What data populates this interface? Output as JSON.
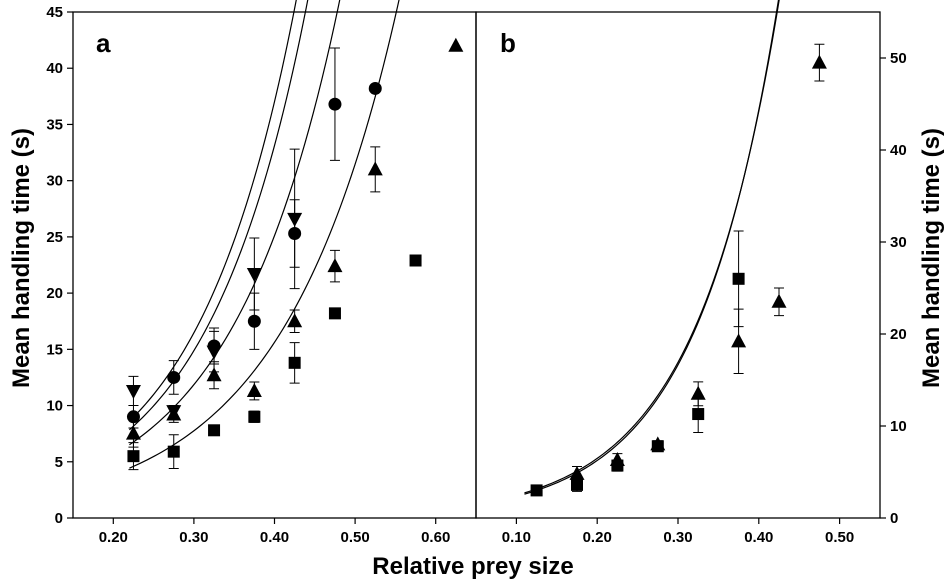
{
  "chart_data": {
    "type": "scatter",
    "xlabel": "Relative prey size",
    "panels": [
      {
        "label": "a",
        "ylabel": "Mean handling time (s)",
        "y_axis_side": "left",
        "xlim": [
          0.15,
          0.65
        ],
        "ylim": [
          0,
          45
        ],
        "x_ticks": [
          "0.20",
          "0.30",
          "0.40",
          "0.50",
          "0.60"
        ],
        "x_tick_values": [
          0.2,
          0.3,
          0.4,
          0.5,
          0.6
        ],
        "y_ticks": [
          "0",
          "5",
          "10",
          "15",
          "20",
          "25",
          "30",
          "35",
          "40",
          "45"
        ],
        "y_tick_values": [
          0,
          5,
          10,
          15,
          20,
          25,
          30,
          35,
          40,
          45
        ],
        "series": [
          {
            "marker": "triangle-down",
            "points": [
              {
                "x": 0.225,
                "y": 11.3,
                "err": 1.3
              },
              {
                "x": 0.275,
                "y": 9.5,
                "err": 0.5
              },
              {
                "x": 0.325,
                "y": 14.8,
                "err": 1.8
              },
              {
                "x": 0.375,
                "y": 21.7,
                "err": 3.2
              },
              {
                "x": 0.425,
                "y": 26.6,
                "err": 6.2
              }
            ],
            "fit": {
              "a": 1.45,
              "b": 8.1,
              "x_range": [
                0.22,
                0.49
              ]
            }
          },
          {
            "marker": "circle",
            "points": [
              {
                "x": 0.225,
                "y": 9.0,
                "err": 1.0
              },
              {
                "x": 0.275,
                "y": 12.5,
                "err": 1.5
              },
              {
                "x": 0.325,
                "y": 15.3,
                "err": 1.6
              },
              {
                "x": 0.375,
                "y": 17.5,
                "err": 2.5
              },
              {
                "x": 0.425,
                "y": 25.3,
                "err": 3.0
              },
              {
                "x": 0.475,
                "y": 36.8,
                "err": 5.0
              },
              {
                "x": 0.525,
                "y": 38.2,
                "err": 0
              }
            ],
            "fit": {
              "a": 1.35,
              "b": 8.0,
              "x_range": [
                0.22,
                0.545
              ]
            }
          },
          {
            "marker": "triangle-up",
            "points": [
              {
                "x": 0.225,
                "y": 7.5,
                "err": 1.2
              },
              {
                "x": 0.275,
                "y": 9.2,
                "err": 0.7
              },
              {
                "x": 0.325,
                "y": 12.7,
                "err": 1.2
              },
              {
                "x": 0.375,
                "y": 11.3,
                "err": 0.8
              },
              {
                "x": 0.425,
                "y": 17.5,
                "err": 1.0
              },
              {
                "x": 0.475,
                "y": 22.4,
                "err": 1.4
              },
              {
                "x": 0.525,
                "y": 31.0,
                "err": 2.0
              },
              {
                "x": 0.625,
                "y": 42.0,
                "err": 0
              }
            ],
            "fit": {
              "a": 1.25,
              "b": 7.5,
              "x_range": [
                0.22,
                0.635
              ]
            }
          },
          {
            "marker": "square",
            "points": [
              {
                "x": 0.225,
                "y": 5.5,
                "err": 1.2
              },
              {
                "x": 0.275,
                "y": 5.9,
                "err": 1.5
              },
              {
                "x": 0.325,
                "y": 7.8,
                "err": 0
              },
              {
                "x": 0.375,
                "y": 9.0,
                "err": 0.5
              },
              {
                "x": 0.425,
                "y": 13.8,
                "err": 1.8
              },
              {
                "x": 0.475,
                "y": 18.2,
                "err": 0
              },
              {
                "x": 0.575,
                "y": 22.9,
                "err": 0
              }
            ],
            "fit": {
              "a": 0.95,
              "b": 7.0,
              "x_range": [
                0.22,
                0.575
              ]
            }
          }
        ]
      },
      {
        "label": "b",
        "ylabel": "Mean handling time (s)",
        "y_axis_side": "right",
        "xlim": [
          0.05,
          0.55
        ],
        "ylim": [
          0,
          55
        ],
        "x_ticks": [
          "0.10",
          "0.20",
          "0.30",
          "0.40",
          "0.50"
        ],
        "x_tick_values": [
          0.1,
          0.2,
          0.3,
          0.4,
          0.5
        ],
        "y_ticks": [
          "0",
          "10",
          "20",
          "30",
          "40",
          "50"
        ],
        "y_tick_values": [
          0,
          10,
          20,
          30,
          40,
          50
        ],
        "series": [
          {
            "marker": "square",
            "points": [
              {
                "x": 0.125,
                "y": 3.0,
                "err": 0
              },
              {
                "x": 0.175,
                "y": 3.6,
                "err": 0.7
              },
              {
                "x": 0.225,
                "y": 5.7,
                "err": 0.6
              },
              {
                "x": 0.275,
                "y": 7.8,
                "err": 0.5
              },
              {
                "x": 0.325,
                "y": 11.3,
                "err": 2.0
              },
              {
                "x": 0.375,
                "y": 26.0,
                "err": 5.2
              }
            ],
            "fit": {
              "a": 0.88,
              "b": 9.8,
              "x_range": [
                0.11,
                0.445
              ]
            }
          },
          {
            "marker": "triangle-up",
            "points": [
              {
                "x": 0.175,
                "y": 4.8,
                "err": 0.8
              },
              {
                "x": 0.225,
                "y": 6.3,
                "err": 0.7
              },
              {
                "x": 0.275,
                "y": 8.0,
                "err": 0.4
              },
              {
                "x": 0.325,
                "y": 13.5,
                "err": 1.3
              },
              {
                "x": 0.375,
                "y": 19.2,
                "err": 3.5
              },
              {
                "x": 0.425,
                "y": 23.5,
                "err": 1.5
              },
              {
                "x": 0.475,
                "y": 49.5,
                "err": 2.0
              }
            ],
            "fit": {
              "a": 0.95,
              "b": 9.6,
              "x_range": [
                0.11,
                0.5
              ]
            }
          }
        ]
      }
    ]
  }
}
